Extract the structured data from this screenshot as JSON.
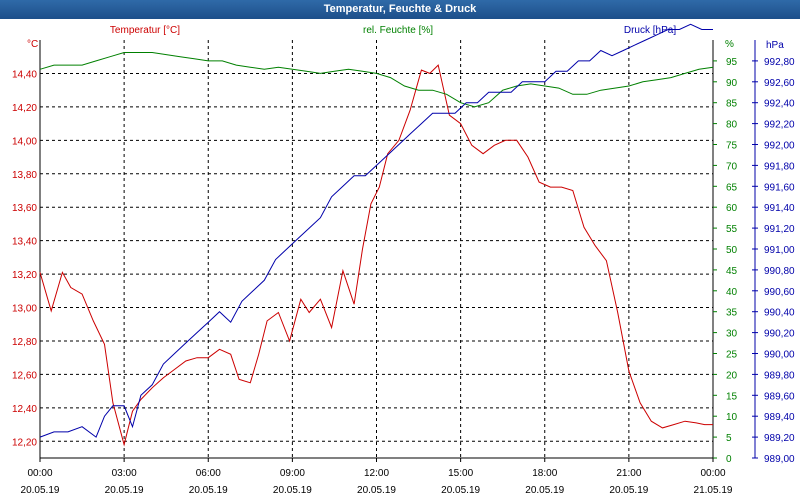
{
  "window": {
    "title": "Temperatur, Feuchte & Druck"
  },
  "colors": {
    "temperature": "#cc0000",
    "humidity": "#008000",
    "pressure": "#0000aa",
    "grid": "#000000"
  },
  "chart_data": {
    "type": "line",
    "title": "Temperatur, Feuchte & Druck",
    "grid": true,
    "x_ticks": [
      {
        "time": "00:00",
        "date": "20.05.19"
      },
      {
        "time": "03:00",
        "date": "20.05.19"
      },
      {
        "time": "06:00",
        "date": "20.05.19"
      },
      {
        "time": "09:00",
        "date": "20.05.19"
      },
      {
        "time": "12:00",
        "date": "20.05.19"
      },
      {
        "time": "15:00",
        "date": "20.05.19"
      },
      {
        "time": "18:00",
        "date": "20.05.19"
      },
      {
        "time": "21:00",
        "date": "20.05.19"
      },
      {
        "time": "00:00",
        "date": "21.05.19"
      }
    ],
    "x_range_hours": [
      0,
      24
    ],
    "axes": {
      "temperature": {
        "label": "Temperatur [°C]",
        "unit": "°C",
        "range": [
          12.1,
          14.6
        ],
        "ticks": [
          "14,40",
          "14,20",
          "14,00",
          "13,80",
          "13,60",
          "13,40",
          "13,20",
          "13,00",
          "12,80",
          "12,60",
          "12,40",
          "12,20"
        ],
        "tick_values": [
          14.4,
          14.2,
          14.0,
          13.8,
          13.6,
          13.4,
          13.2,
          13.0,
          12.8,
          12.6,
          12.4,
          12.2
        ]
      },
      "humidity": {
        "label": "rel. Feuchte [%]",
        "unit": "%",
        "range": [
          0,
          100
        ],
        "ticks": [
          "95",
          "90",
          "85",
          "80",
          "75",
          "70",
          "65",
          "60",
          "55",
          "50",
          "45",
          "40",
          "35",
          "30",
          "25",
          "20",
          "15",
          "10",
          "5",
          "0"
        ],
        "tick_values": [
          95,
          90,
          85,
          80,
          75,
          70,
          65,
          60,
          55,
          50,
          45,
          40,
          35,
          30,
          25,
          20,
          15,
          10,
          5,
          0
        ]
      },
      "pressure": {
        "label": "Druck [hPa]",
        "unit": "hPa",
        "range": [
          989.0,
          993.0
        ],
        "ticks": [
          "992,80",
          "992,60",
          "992,40",
          "992,20",
          "992,00",
          "991,80",
          "991,60",
          "991,40",
          "991,20",
          "991,00",
          "990,80",
          "990,60",
          "990,40",
          "990,20",
          "990,00",
          "989,80",
          "989,60",
          "989,40",
          "989,20",
          "989,00"
        ],
        "tick_values": [
          992.8,
          992.6,
          992.4,
          992.2,
          992.0,
          991.8,
          991.6,
          991.4,
          991.2,
          991.0,
          990.8,
          990.6,
          990.4,
          990.2,
          990.0,
          989.8,
          989.6,
          989.4,
          989.2,
          989.0
        ]
      }
    },
    "series": [
      {
        "name": "Temperatur",
        "axis": "temperature",
        "x": [
          0,
          0.4,
          0.8,
          1.1,
          1.5,
          1.9,
          2.3,
          2.6,
          3.0,
          3.3,
          3.6,
          4.0,
          4.4,
          4.8,
          5.2,
          5.6,
          6.0,
          6.4,
          6.8,
          7.1,
          7.5,
          7.8,
          8.1,
          8.5,
          8.9,
          9.3,
          9.6,
          10.0,
          10.4,
          10.8,
          11.2,
          11.5,
          11.8,
          12.1,
          12.4,
          12.8,
          13.2,
          13.6,
          13.9,
          14.2,
          14.6,
          15.0,
          15.4,
          15.8,
          16.2,
          16.6,
          17.0,
          17.4,
          17.8,
          18.2,
          18.6,
          19.0,
          19.4,
          19.8,
          20.2,
          20.6,
          21.0,
          21.4,
          21.8,
          22.2,
          22.6,
          23.0,
          23.4,
          23.7,
          24.0
        ],
        "values": [
          13.21,
          12.98,
          13.21,
          13.12,
          13.08,
          12.92,
          12.78,
          12.43,
          12.18,
          12.38,
          12.45,
          12.52,
          12.58,
          12.63,
          12.68,
          12.7,
          12.7,
          12.75,
          12.72,
          12.57,
          12.55,
          12.72,
          12.92,
          12.97,
          12.8,
          13.05,
          12.97,
          13.05,
          12.88,
          13.22,
          13.02,
          13.35,
          13.62,
          13.72,
          13.92,
          14.0,
          14.18,
          14.42,
          14.4,
          14.45,
          14.15,
          14.1,
          13.97,
          13.92,
          13.97,
          14.0,
          14.0,
          13.9,
          13.75,
          13.72,
          13.72,
          13.7,
          13.48,
          13.37,
          13.28,
          12.97,
          12.62,
          12.43,
          12.32,
          12.28,
          12.3,
          12.32,
          12.31,
          12.3,
          12.3
        ]
      },
      {
        "name": "rel. Feuchte",
        "axis": "humidity",
        "x": [
          0,
          0.5,
          1,
          1.5,
          2,
          2.5,
          3,
          3.5,
          4,
          4.5,
          5,
          5.5,
          6,
          6.5,
          7,
          7.5,
          8,
          8.5,
          9,
          9.5,
          10,
          10.5,
          11,
          11.5,
          12,
          12.5,
          13,
          13.5,
          14,
          14.5,
          15,
          15.5,
          16,
          16.5,
          17,
          17.5,
          18,
          18.5,
          19,
          19.5,
          20,
          20.5,
          21,
          21.5,
          22,
          22.5,
          23,
          23.5,
          24
        ],
        "values": [
          93,
          94,
          94,
          94,
          95,
          96,
          97,
          97,
          97,
          96.5,
          96,
          95.5,
          95,
          95,
          94,
          93.5,
          93,
          93.5,
          93,
          92.5,
          92,
          92.5,
          93,
          92.5,
          92,
          91,
          89,
          88,
          88,
          87,
          85,
          84,
          85,
          88,
          89,
          89.5,
          89,
          88.5,
          87,
          87,
          88,
          88.5,
          89,
          90,
          90.5,
          91,
          92,
          93,
          93.5
        ]
      },
      {
        "name": "Druck",
        "axis": "pressure",
        "x": [
          0,
          0.5,
          1,
          1.5,
          2,
          2.3,
          2.6,
          3,
          3.3,
          3.6,
          4,
          4.4,
          4.8,
          5.2,
          5.6,
          6,
          6.4,
          6.8,
          7.2,
          7.6,
          8,
          8.4,
          8.8,
          9.2,
          9.6,
          10,
          10.4,
          10.8,
          11.2,
          11.6,
          12,
          12.4,
          12.8,
          13.2,
          13.6,
          14,
          14.4,
          14.8,
          15.2,
          15.6,
          16,
          16.4,
          16.8,
          17.2,
          17.6,
          18,
          18.4,
          18.8,
          19.2,
          19.6,
          20,
          20.4,
          20.8,
          21.2,
          21.6,
          22,
          22.4,
          22.8,
          23.2,
          23.6,
          24
        ],
        "values": [
          989.2,
          989.25,
          989.25,
          989.3,
          989.2,
          989.4,
          989.5,
          989.5,
          989.3,
          989.6,
          989.7,
          989.9,
          990.0,
          990.1,
          990.2,
          990.3,
          990.4,
          990.3,
          990.5,
          990.6,
          990.7,
          990.9,
          991.0,
          991.1,
          991.2,
          991.3,
          991.5,
          991.6,
          991.7,
          991.7,
          991.8,
          991.9,
          992.0,
          992.1,
          992.2,
          992.3,
          992.3,
          992.3,
          992.4,
          992.4,
          992.5,
          992.5,
          992.5,
          992.6,
          992.6,
          992.6,
          992.7,
          992.7,
          992.8,
          992.8,
          992.9,
          992.85,
          992.9,
          992.95,
          993.0,
          993.05,
          993.1,
          993.1,
          993.15,
          993.1,
          993.1
        ]
      }
    ]
  }
}
